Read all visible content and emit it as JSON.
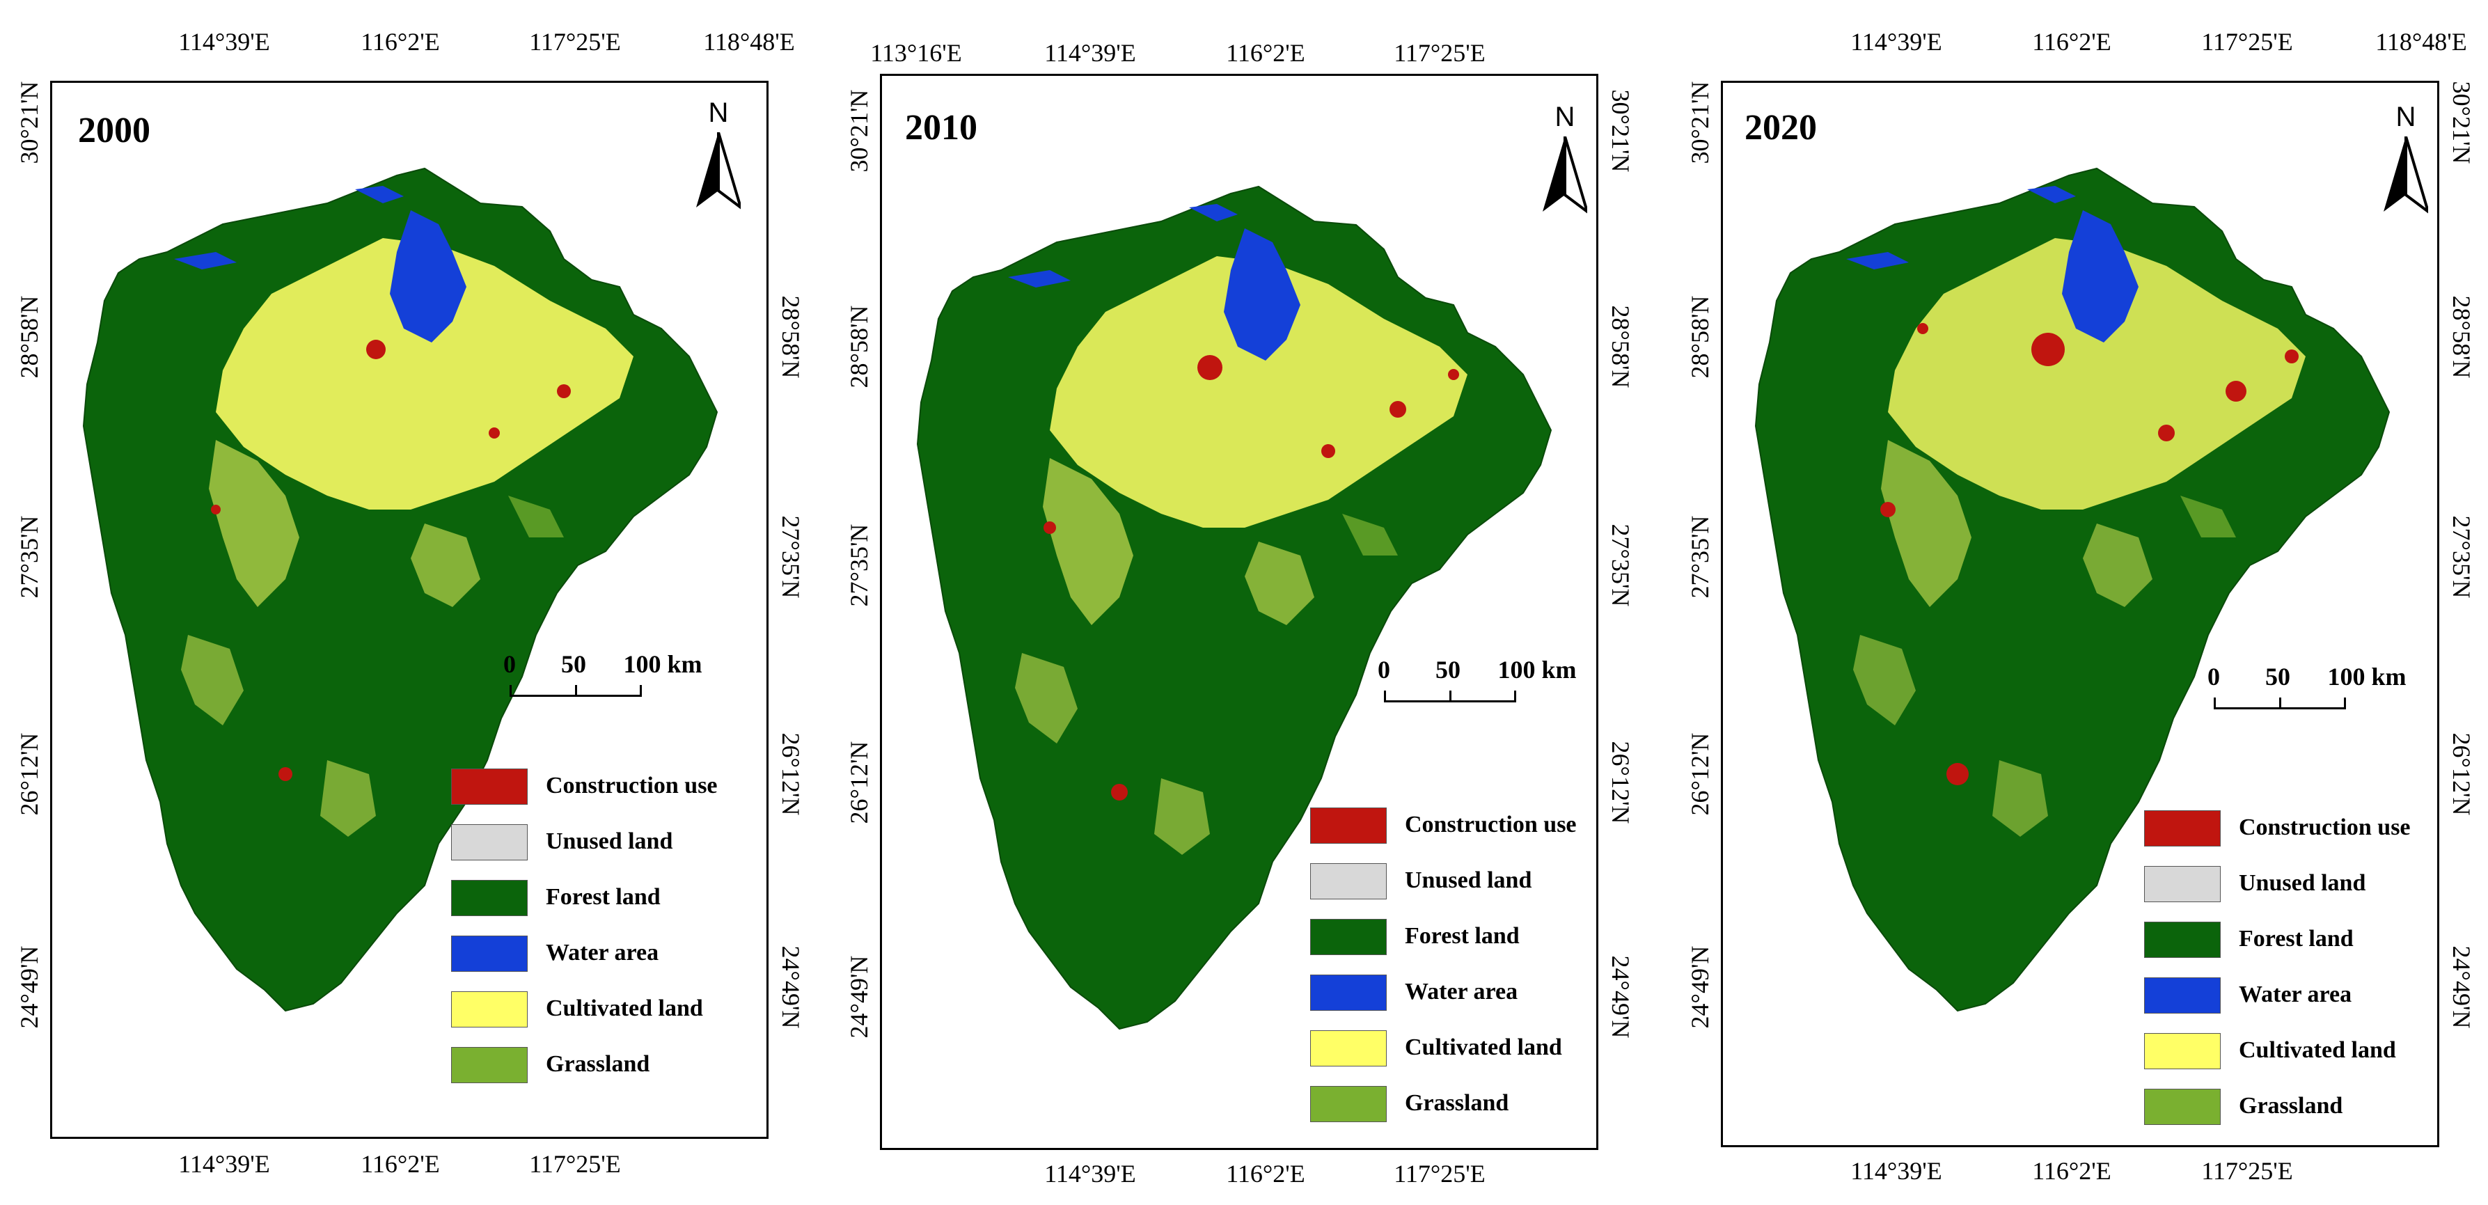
{
  "legend_colors": {
    "construction": "#c0150f",
    "unused": "#d8d8d8",
    "forest": "#0b640b",
    "water": "#1440d8",
    "cultivated": "#ffff66",
    "grassland": "#7ab030"
  },
  "legend": [
    {
      "key": "construction",
      "label": "Construction use"
    },
    {
      "key": "unused",
      "label": "Unused land"
    },
    {
      "key": "forest",
      "label": "Forest land"
    },
    {
      "key": "water",
      "label": "Water area"
    },
    {
      "key": "cultivated",
      "label": "Cultivated land"
    },
    {
      "key": "grassland",
      "label": "Grassland"
    }
  ],
  "north_label": "N",
  "scale": {
    "labels": [
      "0",
      "50",
      "100 km"
    ]
  },
  "panels": [
    {
      "year": "2000",
      "top_coords": [
        "114°39'E",
        "116°2'E",
        "117°25'E",
        "118°48'E"
      ],
      "bottom_coords": [
        "114°39'E",
        "116°2'E",
        "117°25'E"
      ],
      "left_coords": [
        "30°21'N",
        "28°58'N",
        "27°35'N",
        "26°12'N",
        "24°49'N"
      ],
      "right_coords": [
        "28°58'N",
        "27°35'N",
        "26°12'N",
        "24°49'N"
      ]
    },
    {
      "year": "2010",
      "top_coords": [
        "113°16'E",
        "114°39'E",
        "116°2'E",
        "117°25'E"
      ],
      "bottom_coords": [
        "114°39'E",
        "116°2'E",
        "117°25'E"
      ],
      "left_coords": [
        "30°21'N",
        "28°58'N",
        "27°35'N",
        "26°12'N",
        "24°49'N"
      ],
      "right_coords": [
        "30°21'N",
        "28°58'N",
        "27°35'N",
        "26°12'N",
        "24°49'N"
      ]
    },
    {
      "year": "2020",
      "top_coords": [
        "114°39'E",
        "116°2'E",
        "117°25'E",
        "118°48'E"
      ],
      "bottom_coords": [
        "114°39'E",
        "116°2'E",
        "117°25'E"
      ],
      "left_coords": [
        "30°21'N",
        "28°58'N",
        "27°35'N",
        "26°12'N",
        "24°49'N"
      ],
      "right_coords": [
        "30°21'N",
        "28°58'N",
        "27°35'N",
        "26°12'N",
        "24°49'N"
      ]
    }
  ]
}
